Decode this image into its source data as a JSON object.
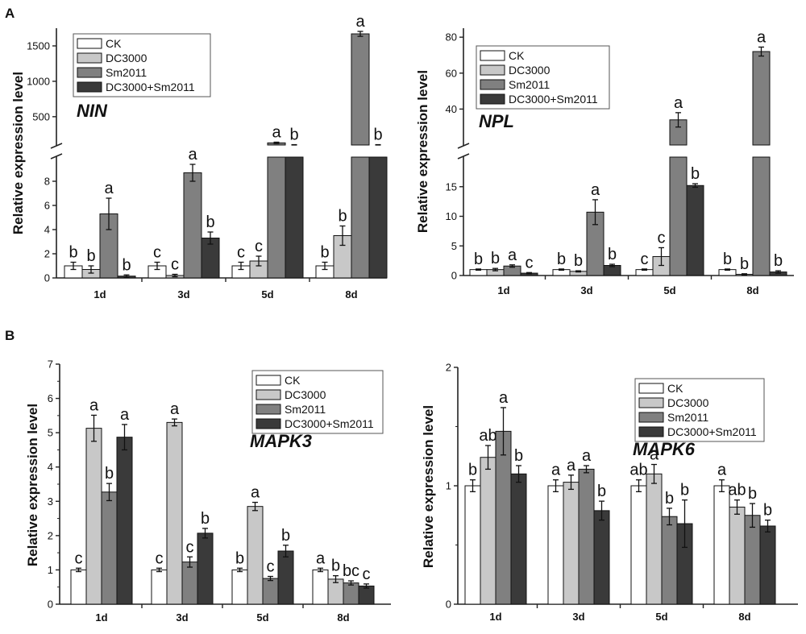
{
  "panel_labels": [
    "A",
    "B"
  ],
  "colors": {
    "CK": "#ffffff",
    "DC3000": "#c8c8c8",
    "Sm2011": "#808080",
    "DC3000+Sm2011": "#3a3a3a",
    "axis": "#222222"
  },
  "chart_data": [
    {
      "type": "bar",
      "title": "NIN",
      "xlabel": "",
      "ylabel": "Relative expression level",
      "categories": [
        "1d",
        "3d",
        "5d",
        "8d"
      ],
      "legend": [
        "CK",
        "DC3000",
        "Sm2011",
        "DC3000+Sm2011"
      ],
      "y_break": true,
      "ylim_lower": [
        0,
        10
      ],
      "ylim_upper": [
        100,
        1750
      ],
      "yticks_lower": [
        "0",
        "2",
        "4",
        "6",
        "8"
      ],
      "yticks_upper": [
        "500",
        "1000",
        "1500"
      ],
      "series": [
        {
          "name": "CK",
          "values": [
            1.0,
            1.0,
            1.0,
            1.0
          ],
          "errors": [
            0.3,
            0.3,
            0.3,
            0.3
          ],
          "letters": [
            "b",
            "c",
            "c",
            "b"
          ]
        },
        {
          "name": "DC3000",
          "values": [
            0.7,
            0.2,
            1.4,
            3.5
          ],
          "errors": [
            0.3,
            0.1,
            0.4,
            0.8
          ],
          "letters": [
            "b",
            "c",
            "c",
            "b"
          ]
        },
        {
          "name": "Sm2011",
          "values": [
            5.3,
            8.7,
            130,
            1670
          ],
          "errors": [
            1.3,
            0.7,
            10,
            35
          ],
          "letters": [
            "a",
            "a",
            "a",
            "a"
          ]
        },
        {
          "name": "DC3000+Sm2011",
          "values": [
            0.15,
            3.3,
            100,
            100
          ],
          "errors": [
            0.1,
            0.5,
            5,
            5
          ],
          "letters": [
            "b",
            "b",
            "b",
            "b"
          ]
        }
      ]
    },
    {
      "type": "bar",
      "title": "NPL",
      "xlabel": "",
      "ylabel": "Relative expression level",
      "categories": [
        "1d",
        "3d",
        "5d",
        "8d"
      ],
      "legend": [
        "CK",
        "DC3000",
        "Sm2011",
        "DC3000+Sm2011"
      ],
      "y_break": true,
      "ylim_lower": [
        0,
        20
      ],
      "ylim_upper": [
        20,
        85
      ],
      "yticks_lower": [
        "0",
        "5",
        "10",
        "15"
      ],
      "yticks_upper": [
        "40",
        "60",
        "80"
      ],
      "series": [
        {
          "name": "CK",
          "values": [
            1.0,
            1.0,
            1.0,
            1.0
          ],
          "errors": [
            0.1,
            0.1,
            0.1,
            0.1
          ],
          "letters": [
            "b",
            "b",
            "c",
            "b"
          ]
        },
        {
          "name": "DC3000",
          "values": [
            1.0,
            0.7,
            3.2,
            0.2
          ],
          "errors": [
            0.2,
            0.1,
            1.5,
            0.1
          ],
          "letters": [
            "b",
            "b",
            "c",
            "b"
          ]
        },
        {
          "name": "Sm2011",
          "values": [
            1.6,
            10.7,
            34,
            72
          ],
          "errors": [
            0.2,
            2.1,
            4,
            2.5
          ],
          "letters": [
            "a",
            "a",
            "a",
            "a"
          ]
        },
        {
          "name": "DC3000+Sm2011",
          "values": [
            0.4,
            1.7,
            15.2,
            0.6
          ],
          "errors": [
            0.1,
            0.2,
            0.3,
            0.2
          ],
          "letters": [
            "c",
            "b",
            "b",
            "b"
          ]
        }
      ]
    },
    {
      "type": "bar",
      "title": "MAPK3",
      "xlabel": "",
      "ylabel": "Relative expression level",
      "categories": [
        "1d",
        "3d",
        "5d",
        "8d"
      ],
      "legend": [
        "CK",
        "DC3000",
        "Sm2011",
        "DC3000+Sm2011"
      ],
      "ylim": [
        0,
        7
      ],
      "yticks": [
        "0",
        "1",
        "2",
        "3",
        "4",
        "5",
        "6",
        "7"
      ],
      "series": [
        {
          "name": "CK",
          "values": [
            1.0,
            1.0,
            1.0,
            1.0
          ],
          "errors": [
            0.05,
            0.05,
            0.05,
            0.05
          ],
          "letters": [
            "c",
            "c",
            "b",
            "a"
          ]
        },
        {
          "name": "DC3000",
          "values": [
            5.13,
            5.3,
            2.85,
            0.73
          ],
          "errors": [
            0.38,
            0.1,
            0.12,
            0.1
          ],
          "letters": [
            "a",
            "a",
            "a",
            "b"
          ]
        },
        {
          "name": "Sm2011",
          "values": [
            3.27,
            1.23,
            0.75,
            0.62
          ],
          "errors": [
            0.25,
            0.15,
            0.06,
            0.06
          ],
          "letters": [
            "b",
            "c",
            "c",
            "bc"
          ]
        },
        {
          "name": "DC3000+Sm2011",
          "values": [
            4.87,
            2.07,
            1.55,
            0.53
          ],
          "errors": [
            0.37,
            0.14,
            0.17,
            0.06
          ],
          "letters": [
            "a",
            "b",
            "b",
            "c"
          ]
        }
      ]
    },
    {
      "type": "bar",
      "title": "MAPK6",
      "xlabel": "",
      "ylabel": "Relative expression level",
      "categories": [
        "1d",
        "3d",
        "5d",
        "8d"
      ],
      "legend": [
        "CK",
        "DC3000",
        "Sm2011",
        "DC3000+Sm2011"
      ],
      "ylim": [
        0,
        2
      ],
      "yticks": [
        "0",
        "1",
        "2"
      ],
      "series": [
        {
          "name": "CK",
          "values": [
            1.0,
            1.0,
            1.0,
            1.0
          ],
          "errors": [
            0.05,
            0.05,
            0.05,
            0.05
          ],
          "letters": [
            "b",
            "a",
            "ab",
            "a"
          ]
        },
        {
          "name": "DC3000",
          "values": [
            1.24,
            1.03,
            1.1,
            0.82
          ],
          "errors": [
            0.1,
            0.06,
            0.08,
            0.06
          ],
          "letters": [
            "ab",
            "a",
            "a",
            "ab"
          ]
        },
        {
          "name": "Sm2011",
          "values": [
            1.46,
            1.14,
            0.74,
            0.75
          ],
          "errors": [
            0.2,
            0.03,
            0.07,
            0.1
          ],
          "letters": [
            "a",
            "a",
            "b",
            "b"
          ]
        },
        {
          "name": "DC3000+Sm2011",
          "values": [
            1.1,
            0.79,
            0.68,
            0.66
          ],
          "errors": [
            0.07,
            0.08,
            0.2,
            0.05
          ],
          "letters": [
            "b",
            "b",
            "b",
            "b"
          ]
        }
      ]
    }
  ]
}
